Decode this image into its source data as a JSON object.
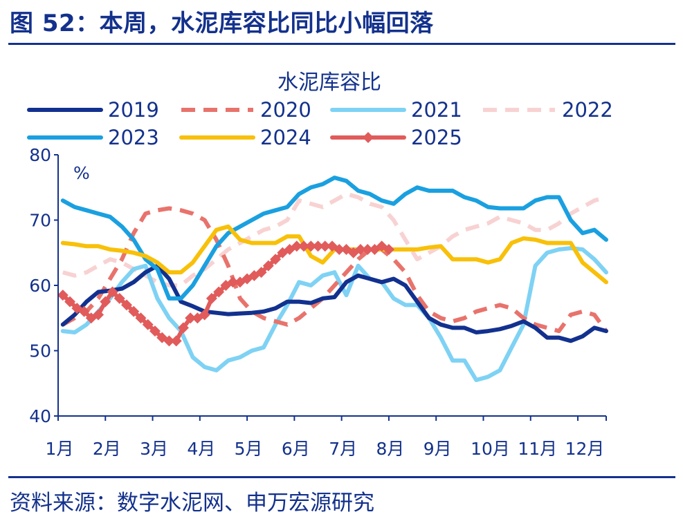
{
  "figure": {
    "title": "图 52：本周，水泥库容比同比小幅回落",
    "source": "资料来源：数字水泥网、申万宏源研究"
  },
  "chart_data": {
    "type": "line",
    "title": "水泥库容比",
    "unit_label": "%",
    "x_tick_labels": [
      "1月",
      "2月",
      "3月",
      "4月",
      "5月",
      "6月",
      "7月",
      "8月",
      "9月",
      "10月",
      "11月",
      "12月"
    ],
    "xlim": [
      1,
      12.6
    ],
    "ylim": [
      40,
      80
    ],
    "y_ticks": [
      40,
      50,
      60,
      70,
      80
    ],
    "grid": false,
    "legend_position": "top",
    "series": [
      {
        "name": "2019",
        "color": "#12318f",
        "style": "solid",
        "x": [
          1.1,
          1.35,
          1.6,
          1.85,
          2.1,
          2.35,
          2.6,
          2.85,
          3.1,
          3.35,
          3.6,
          3.85,
          4.1,
          4.35,
          4.6,
          4.85,
          5.1,
          5.35,
          5.6,
          5.85,
          6.1,
          6.35,
          6.6,
          6.85,
          7.1,
          7.35,
          7.6,
          7.85,
          8.1,
          8.35,
          8.6,
          8.85,
          9.1,
          9.35,
          9.6,
          9.85,
          10.1,
          10.35,
          10.6,
          10.85,
          11.1,
          11.35,
          11.6,
          11.85,
          12.1,
          12.35,
          12.6
        ],
        "y": [
          54,
          55.5,
          57.5,
          59,
          59.2,
          59.5,
          60.5,
          62,
          63,
          61,
          57.5,
          56.8,
          56,
          55.8,
          55.6,
          55.7,
          55.8,
          56,
          56.5,
          57.5,
          57.5,
          57.3,
          58,
          58.2,
          60.5,
          61.5,
          61,
          60.5,
          61,
          60,
          57.5,
          55,
          54,
          53.5,
          53.5,
          52.8,
          53,
          53.3,
          53.8,
          54.5,
          53.5,
          52,
          52,
          51.5,
          52.2,
          53.5,
          53
        ]
      },
      {
        "name": "2020",
        "color": "#e8736c",
        "style": "dashed",
        "x": [
          1.1,
          1.35,
          1.6,
          1.85,
          2.1,
          2.35,
          2.6,
          2.85,
          3.1,
          3.35,
          3.6,
          3.85,
          4.1,
          4.35,
          4.6,
          4.85,
          5.1,
          5.35,
          5.6,
          5.85,
          6.1,
          6.35,
          6.6,
          6.85,
          7.1,
          7.35,
          7.6,
          7.85,
          8.1,
          8.35,
          8.6,
          8.85,
          9.1,
          9.35,
          9.6,
          9.85,
          10.1,
          10.35,
          10.6,
          10.85,
          11.1,
          11.35,
          11.6,
          11.85,
          12.1,
          12.35,
          12.6
        ],
        "y": [
          54,
          55,
          56,
          58,
          61,
          64,
          68,
          71,
          71.5,
          71.8,
          71.5,
          71,
          70,
          67,
          63,
          58,
          56,
          55,
          54.5,
          54,
          55,
          56.5,
          58,
          60,
          62,
          64,
          65.5,
          65.5,
          64,
          62,
          58.5,
          56,
          55,
          54.5,
          55,
          56,
          56.5,
          57,
          56.5,
          55,
          54,
          53.5,
          53,
          55.5,
          56,
          55.5,
          53
        ]
      },
      {
        "name": "2021",
        "color": "#7ed2f4",
        "style": "solid",
        "x": [
          1.1,
          1.35,
          1.6,
          1.85,
          2.1,
          2.35,
          2.6,
          2.85,
          3.1,
          3.35,
          3.6,
          3.85,
          4.1,
          4.35,
          4.6,
          4.85,
          5.1,
          5.35,
          5.6,
          5.85,
          6.1,
          6.35,
          6.6,
          6.85,
          7.1,
          7.35,
          7.6,
          7.85,
          8.1,
          8.35,
          8.6,
          8.85,
          9.1,
          9.35,
          9.6,
          9.85,
          10.1,
          10.35,
          10.6,
          10.85,
          11.1,
          11.35,
          11.6,
          11.85,
          12.1,
          12.35,
          12.6
        ],
        "y": [
          53,
          52.8,
          54,
          56,
          58,
          60.5,
          62.5,
          63,
          58,
          55,
          53,
          49,
          47.5,
          47,
          48.5,
          49,
          50,
          50.5,
          54,
          57,
          60.5,
          60,
          61.5,
          62,
          58.5,
          63,
          61,
          60.5,
          58,
          57,
          57,
          55,
          52,
          48.5,
          48.5,
          45.5,
          46,
          47,
          50.5,
          54,
          63,
          65,
          65.5,
          65.7,
          65.5,
          64,
          62
        ]
      },
      {
        "name": "2022",
        "color": "#f8d2d2",
        "style": "dashed",
        "x": [
          1.1,
          1.35,
          1.6,
          1.85,
          2.1,
          2.35,
          2.6,
          2.85,
          3.1,
          3.35,
          3.6,
          3.85,
          4.1,
          4.35,
          4.6,
          4.85,
          5.1,
          5.35,
          5.6,
          5.85,
          6.1,
          6.35,
          6.6,
          6.85,
          7.1,
          7.35,
          7.6,
          7.85,
          8.1,
          8.35,
          8.6,
          8.85,
          9.1,
          9.35,
          9.6,
          9.85,
          10.1,
          10.35,
          10.6,
          10.85,
          11.1,
          11.35,
          11.6,
          11.85,
          12.1,
          12.35,
          12.6
        ],
        "y": [
          62,
          61.5,
          62,
          63,
          64,
          63.5,
          62.5,
          61.5,
          60.5,
          60,
          60,
          61.5,
          62.5,
          64,
          65.5,
          66.5,
          67.5,
          68.5,
          69,
          70,
          73,
          72.5,
          72,
          73,
          74,
          73.5,
          72.5,
          72,
          70,
          67,
          64,
          65,
          66,
          67.5,
          68.5,
          69,
          69.5,
          70.5,
          70,
          69.5,
          68.5,
          68.5,
          69.5,
          71,
          72,
          73,
          73.5
        ]
      },
      {
        "name": "2023",
        "color": "#1aa0e0",
        "style": "solid",
        "x": [
          1.1,
          1.35,
          1.6,
          1.85,
          2.1,
          2.35,
          2.6,
          2.85,
          3.1,
          3.35,
          3.6,
          3.85,
          4.1,
          4.35,
          4.6,
          4.85,
          5.1,
          5.35,
          5.6,
          5.85,
          6.1,
          6.35,
          6.6,
          6.85,
          7.1,
          7.35,
          7.6,
          7.85,
          8.1,
          8.35,
          8.6,
          8.85,
          9.1,
          9.35,
          9.6,
          9.85,
          10.1,
          10.35,
          10.6,
          10.85,
          11.1,
          11.35,
          11.6,
          11.85,
          12.1,
          12.35,
          12.6
        ],
        "y": [
          73,
          72,
          71.5,
          71,
          70.5,
          69,
          67,
          64,
          62.5,
          58,
          58,
          60,
          63,
          66,
          68,
          69,
          70,
          71,
          71.5,
          72,
          74,
          75,
          75.5,
          76.5,
          76,
          74.5,
          74,
          73,
          72.5,
          74,
          75,
          74.5,
          74.5,
          74.5,
          73.5,
          73,
          72,
          71.8,
          71.8,
          71.8,
          73,
          73.5,
          73.5,
          70,
          68,
          68.5,
          67
        ]
      },
      {
        "name": "2024",
        "color": "#f8c008",
        "style": "solid",
        "x": [
          1.1,
          1.35,
          1.6,
          1.85,
          2.1,
          2.35,
          2.6,
          2.85,
          3.1,
          3.35,
          3.6,
          3.85,
          4.1,
          4.35,
          4.6,
          4.85,
          5.1,
          5.35,
          5.6,
          5.85,
          6.1,
          6.35,
          6.6,
          6.85,
          7.1,
          7.35,
          7.6,
          7.85,
          8.1,
          8.35,
          8.6,
          8.85,
          9.1,
          9.35,
          9.6,
          9.85,
          10.1,
          10.35,
          10.6,
          10.85,
          11.1,
          11.35,
          11.6,
          11.85,
          12.1,
          12.35,
          12.6
        ],
        "y": [
          66.5,
          66.3,
          66,
          66,
          65.5,
          65.3,
          65,
          64.5,
          63.5,
          62,
          62,
          63.5,
          66,
          68.5,
          69,
          67,
          66.5,
          66.5,
          66.5,
          67.5,
          67.5,
          64.5,
          63.5,
          65.5,
          65.5,
          65.5,
          65.5,
          65.5,
          65.5,
          65.5,
          65.5,
          65.8,
          66,
          64,
          64,
          64,
          63.5,
          64,
          66.5,
          67.2,
          67,
          66.5,
          66.5,
          66.5,
          63.5,
          62,
          60.5
        ]
      },
      {
        "name": "2025",
        "color": "#e15b5b",
        "style": "solid-diamond",
        "x": [
          1.1,
          1.25,
          1.4,
          1.55,
          1.7,
          1.85,
          2.0,
          2.15,
          2.3,
          2.45,
          2.6,
          2.75,
          2.9,
          3.05,
          3.2,
          3.35,
          3.5,
          3.65,
          3.8,
          3.95,
          4.1,
          4.25,
          4.4,
          4.55,
          4.7,
          4.85,
          5.0,
          5.15,
          5.3,
          5.45,
          5.6,
          5.75,
          5.9,
          6.05,
          6.2,
          6.35,
          6.5,
          6.65,
          6.8,
          6.95,
          7.1,
          7.25,
          7.4,
          7.55,
          7.7,
          7.85,
          8.0
        ],
        "y": [
          58.5,
          57.5,
          56.5,
          56,
          55,
          55.5,
          57.5,
          59,
          58,
          57,
          56,
          55,
          54,
          53,
          52,
          51.5,
          51.5,
          53.5,
          55,
          55,
          55.5,
          58,
          59,
          60,
          60.5,
          60.5,
          61,
          61.5,
          62,
          63,
          64,
          65,
          65.5,
          66,
          66,
          66,
          66,
          66,
          66,
          65.5,
          65.5,
          65,
          65.5,
          65.5,
          65.5,
          66,
          65.5
        ]
      }
    ]
  }
}
